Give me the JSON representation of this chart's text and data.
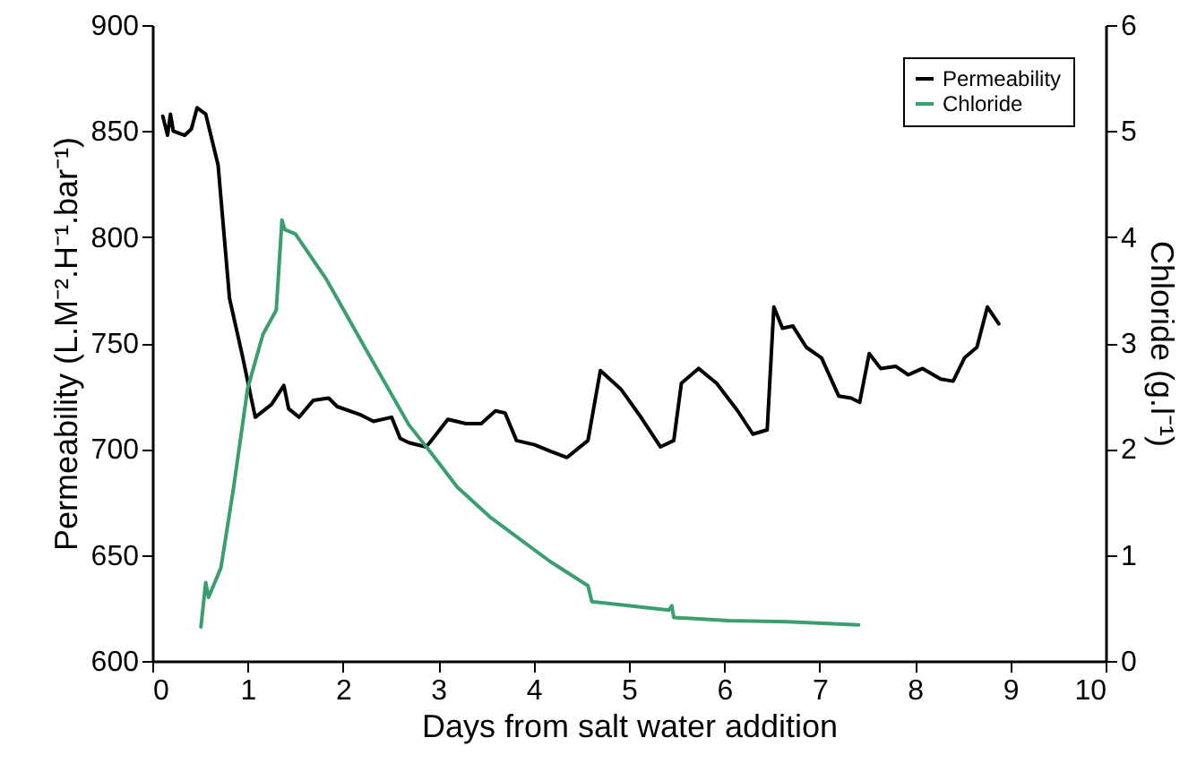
{
  "chart_data": {
    "type": "line",
    "xlabel": "Days from salt water addition",
    "ylabel": "Permeability (L.M⁻².H⁻¹.bar⁻¹)",
    "y2label": "Chloride (g.l⁻¹)",
    "xlim": [
      0,
      10
    ],
    "xticks": [
      0,
      1,
      2,
      3,
      4,
      5,
      6,
      7,
      8,
      9,
      10
    ],
    "ylim": [
      600,
      900
    ],
    "yticks": [
      600,
      650,
      700,
      750,
      800,
      850,
      900
    ],
    "y2lim": [
      0,
      6
    ],
    "y2ticks": [
      0,
      1,
      2,
      3,
      4,
      5,
      6
    ],
    "legend": "top right",
    "line_style": "solid",
    "series": [
      {
        "name": "Permeability",
        "color": "#000000",
        "x": [
          0.11,
          0.16,
          0.19,
          0.22,
          0.34,
          0.41,
          0.47,
          0.53,
          0.56,
          0.69,
          0.81,
          0.94,
          1.08,
          1.25,
          1.38,
          1.43,
          1.54,
          1.69,
          1.85,
          1.94,
          2.19,
          2.32,
          2.51,
          2.6,
          2.69,
          2.87,
          2.91,
          3.1,
          3.29,
          3.45,
          3.6,
          3.7,
          3.82,
          4.01,
          4.17,
          4.35,
          4.57,
          4.7,
          4.92,
          5.11,
          5.33,
          5.47,
          5.55,
          5.73,
          5.92,
          6.14,
          6.3,
          6.45,
          6.52,
          6.61,
          6.72,
          6.86,
          7.02,
          7.2,
          7.33,
          7.42,
          7.52,
          7.64,
          7.8,
          7.93,
          8.08,
          8.27,
          8.4,
          8.52,
          8.65,
          8.76,
          8.88
        ],
        "values": [
          857,
          848,
          858,
          850,
          848,
          851,
          861,
          859,
          858,
          834,
          771,
          745,
          715,
          721,
          730,
          719,
          715,
          723,
          724,
          720,
          716,
          713,
          715,
          705,
          703,
          701,
          703,
          714,
          712,
          712,
          718,
          717,
          704,
          702,
          699,
          696,
          704,
          737,
          728,
          716,
          701,
          704,
          731,
          738,
          731,
          718,
          707,
          709,
          767,
          757,
          758,
          748,
          743,
          725,
          724,
          722,
          745,
          738,
          739,
          735,
          738,
          733,
          732,
          743,
          748,
          767,
          759
        ]
      },
      {
        "name": "Chloride",
        "color": "#3a9e6e",
        "axis": "y2",
        "x": [
          0.51,
          0.56,
          0.59,
          0.72,
          0.85,
          1.0,
          1.16,
          1.3,
          1.36,
          1.39,
          1.5,
          1.82,
          2.26,
          2.69,
          2.91,
          3.2,
          3.54,
          4.17,
          4.57,
          4.61,
          5.42,
          5.45,
          5.47,
          6.05,
          6.67,
          7.41
        ],
        "values": [
          0.32,
          0.74,
          0.6,
          0.88,
          1.62,
          2.57,
          3.08,
          3.31,
          4.16,
          4.07,
          4.03,
          3.61,
          2.91,
          2.23,
          1.98,
          1.64,
          1.36,
          0.94,
          0.71,
          0.56,
          0.48,
          0.52,
          0.41,
          0.38,
          0.37,
          0.34
        ]
      }
    ]
  }
}
